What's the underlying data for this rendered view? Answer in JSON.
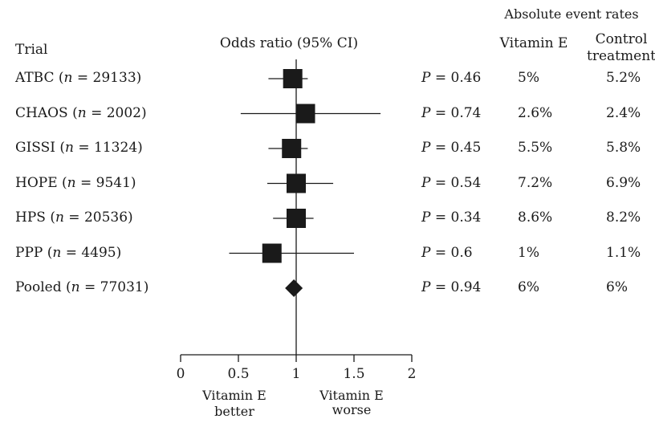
{
  "header": {
    "trial": "Trial",
    "odds_ratio": "Odds ratio (95% CI)",
    "absolute_event_rates": "Absolute event rates",
    "vitamin_e": "Vitamin E",
    "control_line1": "Control",
    "control_line2": "treatment"
  },
  "footer": {
    "better_line1": "Vitamin E",
    "better_line2": "better",
    "worse_line1": "Vitamin E",
    "worse_line2": "worse"
  },
  "chart_data": {
    "type": "forest",
    "xlabel": "",
    "xlim": [
      0,
      2
    ],
    "xticks": [
      0,
      0.5,
      1,
      1.5,
      2
    ],
    "xtick_labels": [
      "0",
      "0.5",
      "1",
      "1.5",
      "2"
    ],
    "reference_line": 1,
    "rows": [
      {
        "name": "ATBC",
        "n": "29133",
        "or": 0.97,
        "ci": [
          0.76,
          1.1
        ],
        "p_label": "P",
        "p": "= 0.46",
        "vitE": "5%",
        "control": "5.2%",
        "marker": "square"
      },
      {
        "name": "CHAOS",
        "n": "2002",
        "or": 1.08,
        "ci": [
          0.52,
          1.73
        ],
        "p_label": "P",
        "p": "= 0.74",
        "vitE": "2.6%",
        "control": "2.4%",
        "marker": "square"
      },
      {
        "name": "GISSI",
        "n": "11324",
        "or": 0.96,
        "ci": [
          0.76,
          1.1
        ],
        "p_label": "P",
        "p": "= 0.45",
        "vitE": "5.5%",
        "control": "5.8%",
        "marker": "square"
      },
      {
        "name": "HOPE",
        "n": "9541",
        "or": 1.0,
        "ci": [
          0.75,
          1.32
        ],
        "p_label": "P",
        "p": "= 0.54",
        "vitE": "7.2%",
        "control": "6.9%",
        "marker": "square"
      },
      {
        "name": "HPS",
        "n": "20536",
        "or": 1.0,
        "ci": [
          0.8,
          1.15
        ],
        "p_label": "P",
        "p": "= 0.34",
        "vitE": "8.6%",
        "control": "8.2%",
        "marker": "square"
      },
      {
        "name": "PPP",
        "n": "4495",
        "or": 0.79,
        "ci": [
          0.42,
          1.5
        ],
        "p_label": "P",
        "p": "= 0.6",
        "vitE": "1%",
        "control": "1.1%",
        "marker": "square"
      },
      {
        "name": "Pooled",
        "n": "77031",
        "or": 0.98,
        "ci": [
          0.98,
          0.98
        ],
        "p_label": "P",
        "p": "= 0.94",
        "vitE": "6%",
        "control": "6%",
        "marker": "diamond"
      }
    ]
  }
}
